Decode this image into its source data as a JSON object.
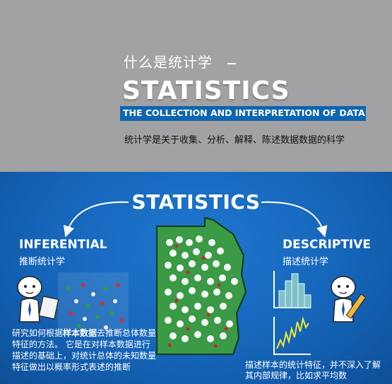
{
  "top": {
    "cn_title": "什么是统计学",
    "heading": "STATISTICS",
    "subtitle": "THE COLLECTION AND INTERPRETATION OF DATA",
    "description": "统计学是关于收集、分析、解释、陈述数据数据的科学"
  },
  "panel": {
    "title": "STATISTICS",
    "inferential": {
      "heading": "INFERENTIAL",
      "cn_label": "推断统计学",
      "text_part1": "研究如何根据",
      "text_bold": "样本数据",
      "text_part2": "去推断总体数量特征的方法。 它是在对样本数据进行描述的基础上，对统计总体的未知数量特征做出以概率形式表述的推断"
    },
    "descriptive": {
      "heading": "DESCRIPTIVE",
      "cn_label": "描述统计学",
      "text_line1": "描述样本的统计特征，并不深入了解",
      "text_line2": "其内部规律，比如求平均数"
    }
  },
  "colors": {
    "banner_gray": "#a2a1a3",
    "accent_blue": "#0e65b1",
    "map_green": "#3a9a45",
    "panel_blue": "#1565b9"
  },
  "icons": [
    "cartoon-person-clipboard-icon",
    "cartoon-person-pencil-icon",
    "histogram-icon",
    "line-chart-icon",
    "population-map-icon"
  ]
}
